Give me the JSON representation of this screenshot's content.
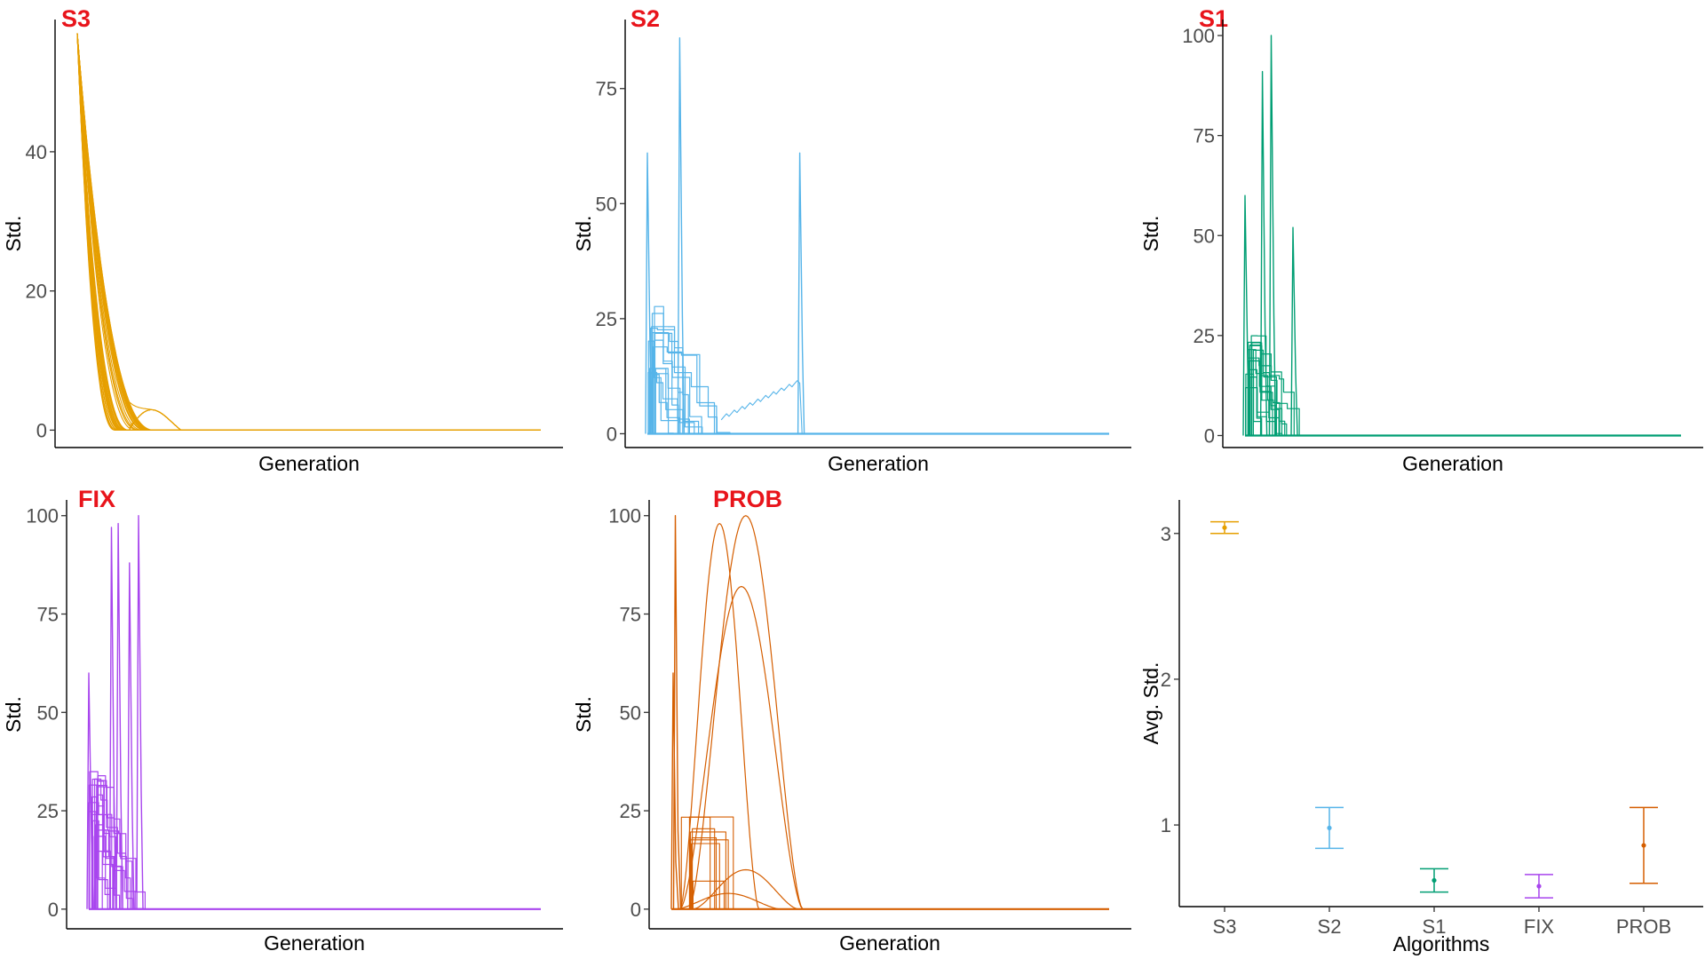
{
  "chart_data": [
    {
      "type": "line",
      "title": "S3",
      "xlabel": "Generation",
      "ylabel": "Std.",
      "ylim": [
        -2.5,
        59
      ],
      "yticks": [
        0,
        20,
        40
      ],
      "x_ticks_shown": false,
      "grid": false,
      "color": "#E69F00",
      "series_desc": "about 40 runs, each decaying smoothly from ~57 at generation start to 0 within the first ~25% of generations",
      "peak": 57
    },
    {
      "type": "line",
      "title": "S2",
      "xlabel": "Generation",
      "ylabel": "Std.",
      "ylim": [
        -3,
        90
      ],
      "yticks": [
        0,
        25,
        50,
        75
      ],
      "x_ticks_shown": false,
      "grid": false,
      "color": "#56B4E9",
      "spikes": [
        61,
        86,
        61
      ],
      "plateau": 28
    },
    {
      "type": "line",
      "title": "S1",
      "xlabel": "Generation",
      "ylabel": "Std.",
      "ylim": [
        -3,
        104
      ],
      "yticks": [
        0,
        25,
        50,
        75,
        100
      ],
      "x_ticks_shown": false,
      "grid": false,
      "color": "#009E73",
      "spikes": [
        60,
        91,
        100,
        52
      ],
      "plateau": 28
    },
    {
      "type": "line",
      "title": "FIX",
      "xlabel": "Generation",
      "ylabel": "Std.",
      "ylim": [
        -5,
        104
      ],
      "yticks": [
        0,
        25,
        50,
        75,
        100
      ],
      "x_ticks_shown": false,
      "grid": false,
      "color": "#A845EE",
      "spikes": [
        60,
        97,
        98,
        88,
        100
      ],
      "plateau": 37
    },
    {
      "type": "line",
      "title": "PROB",
      "xlabel": "Generation",
      "ylabel": "Std.",
      "ylim": [
        -5,
        104
      ],
      "yticks": [
        0,
        25,
        50,
        75,
        100
      ],
      "x_ticks_shown": false,
      "grid": false,
      "color": "#D55E00",
      "spikes": [
        100,
        60
      ],
      "humps": [
        98,
        100,
        82,
        10,
        4
      ]
    },
    {
      "type": "errorbar",
      "title": "",
      "xlabel": "Algorithms",
      "ylabel": "Avg. Std.",
      "categories": [
        "S3",
        "S2",
        "S1",
        "FIX",
        "PROB"
      ],
      "colors": [
        "#E69F00",
        "#56B4E9",
        "#009E73",
        "#A845EE",
        "#D55E00"
      ],
      "means": [
        3.04,
        0.98,
        0.62,
        0.58,
        0.86
      ],
      "lower": [
        3.0,
        0.84,
        0.54,
        0.5,
        0.6
      ],
      "upper": [
        3.08,
        1.12,
        0.7,
        0.66,
        1.12
      ],
      "ylim": [
        0.44,
        3.23
      ],
      "yticks": [
        1,
        2,
        3
      ],
      "grid": false
    }
  ]
}
